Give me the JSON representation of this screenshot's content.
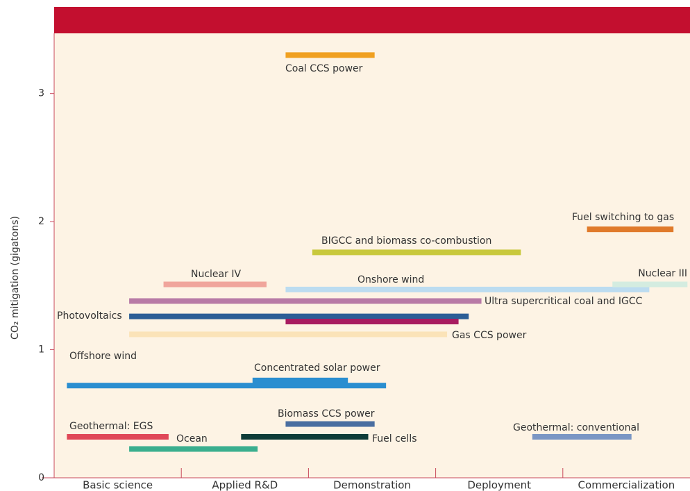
{
  "chart_data": {
    "type": "range-bar",
    "y_label": "CO₂ mitigation (gigatons)",
    "categories": [
      "Basic science",
      "Applied R&D",
      "Demonstration",
      "Deployment",
      "Commercialization"
    ],
    "xlim": [
      0,
      5
    ],
    "ylim": [
      0,
      3.47
    ],
    "yticks": [
      0,
      1,
      2,
      3
    ],
    "series": [
      {
        "name": "Coal CCS power",
        "color": "#f0a020",
        "start": 1.82,
        "end": 2.52,
        "value": 3.3
      },
      {
        "name": "Fuel switching to gas",
        "color": "#e07a2a",
        "start": 4.19,
        "end": 4.87,
        "value": 1.94
      },
      {
        "name": "BIGCC and biomass co-combustion",
        "color": "#c8c83c",
        "start": 2.03,
        "end": 3.67,
        "value": 1.76
      },
      {
        "name": "Nuclear IV",
        "color": "#f0a59c",
        "start": 0.86,
        "end": 1.67,
        "value": 1.51
      },
      {
        "name": "Onshore wind",
        "color": "#bcdcf0",
        "start": 1.82,
        "end": 4.68,
        "value": 1.47
      },
      {
        "name": "Nuclear III",
        "color": "#d4ece0",
        "start": 4.39,
        "end": 4.98,
        "value": 1.51
      },
      {
        "name": "Ultra supercritical coal and IGCC",
        "color": "#b87aa6",
        "start": 0.59,
        "end": 3.36,
        "value": 1.38
      },
      {
        "name": "Photovoltaics",
        "color": "#2c5e96",
        "start": 0.59,
        "end": 3.26,
        "value": 1.26
      },
      {
        "name": null,
        "color": "#a81c60",
        "start": 1.82,
        "end": 3.18,
        "value": 1.22
      },
      {
        "name": "Gas CCS power",
        "color": "#fbe3b8",
        "start": 0.59,
        "end": 3.09,
        "value": 1.12
      },
      {
        "name": "Offshore wind",
        "color": "#2a8ed0",
        "start": 0.1,
        "end": 2.61,
        "value": 0.72
      },
      {
        "name": "Concentrated solar power",
        "color": "#2a8ed0",
        "start": 1.56,
        "end": 2.31,
        "value": 0.76
      },
      {
        "name": "Biomass CCS power",
        "color": "#4a6ea0",
        "start": 1.82,
        "end": 2.52,
        "value": 0.42
      },
      {
        "name": "Geothermal: EGS",
        "color": "#e04858",
        "start": 0.1,
        "end": 0.9,
        "value": 0.32
      },
      {
        "name": "Fuel cells",
        "color": "#0e3c38",
        "start": 1.47,
        "end": 2.47,
        "value": 0.32
      },
      {
        "name": "Geothermal: conventional",
        "color": "#7a96c4",
        "start": 3.76,
        "end": 4.54,
        "value": 0.32
      },
      {
        "name": "Ocean",
        "color": "#3aae8e",
        "start": 0.59,
        "end": 1.6,
        "value": 0.225
      }
    ]
  }
}
